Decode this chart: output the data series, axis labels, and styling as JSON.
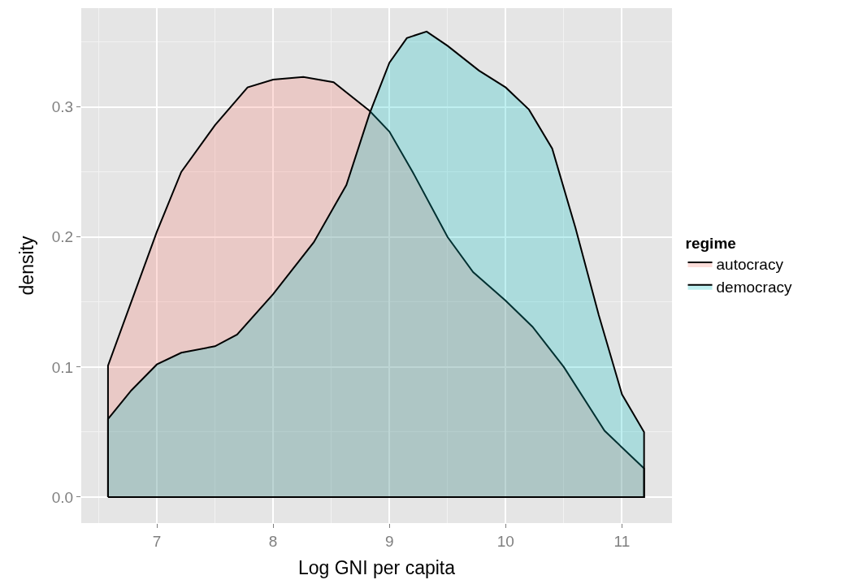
{
  "chart_data": {
    "type": "area",
    "xlabel": "Log GNI per capita",
    "ylabel": "density",
    "legend_title": "regime",
    "series": [
      {
        "name": "autocracy",
        "color": "#f8766d",
        "x": [
          6.58,
          7,
          7.21,
          7.5,
          7.78,
          8,
          8.26,
          8.52,
          8.83,
          9,
          9.2,
          9.5,
          9.72,
          10,
          10.23,
          10.5,
          10.85,
          11.19
        ],
        "values": [
          0.101,
          0.204,
          0.25,
          0.286,
          0.315,
          0.321,
          0.323,
          0.319,
          0.297,
          0.281,
          0.25,
          0.2,
          0.173,
          0.151,
          0.131,
          0.1,
          0.051,
          0.022
        ]
      },
      {
        "name": "democracy",
        "color": "#00bfc4",
        "x": [
          6.58,
          6.78,
          7,
          7.21,
          7.5,
          7.69,
          8,
          8.35,
          8.63,
          8.83,
          9,
          9.15,
          9.32,
          9.5,
          9.77,
          10,
          10.2,
          10.4,
          10.6,
          10.8,
          11,
          11.19
        ],
        "values": [
          0.06,
          0.082,
          0.102,
          0.111,
          0.116,
          0.125,
          0.156,
          0.196,
          0.24,
          0.295,
          0.334,
          0.353,
          0.358,
          0.347,
          0.328,
          0.315,
          0.298,
          0.268,
          0.207,
          0.14,
          0.079,
          0.05
        ]
      }
    ],
    "xlim": [
      6.35,
      11.43
    ],
    "ylim": [
      -0.02,
      0.376
    ],
    "xticks": [
      7,
      8,
      9,
      10,
      11
    ],
    "yticks": [
      {
        "value": 0,
        "label": "0.0"
      },
      0.1,
      0.2,
      0.3
    ],
    "grid": true,
    "legend": "right"
  }
}
